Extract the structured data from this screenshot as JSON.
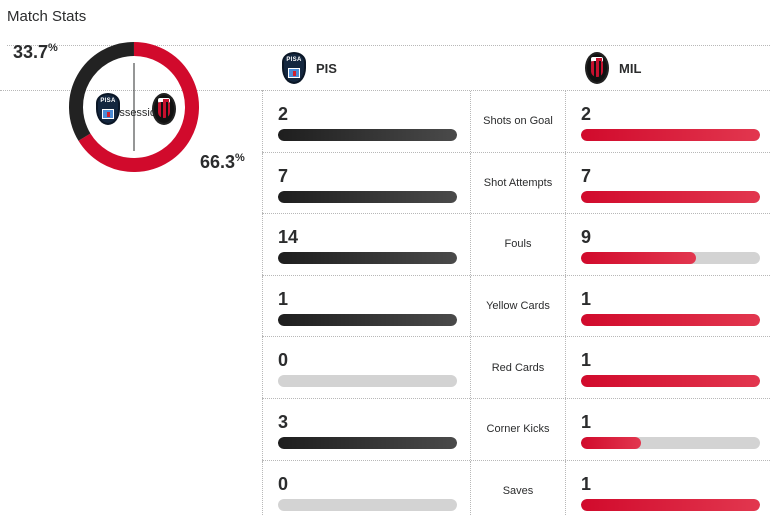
{
  "title": "Match Stats",
  "teams": {
    "home": {
      "abbr": "PIS",
      "logo_text": "PISA",
      "color": "#2b2c2d"
    },
    "away": {
      "abbr": "MIL",
      "color": "#d10a2c"
    }
  },
  "possession": {
    "label": "Possession",
    "home_value": "33.7",
    "away_value": "66.3",
    "unit": "%",
    "home_fraction": 0.337,
    "away_fraction": 0.663
  },
  "stats": [
    {
      "label": "Shots on Goal",
      "home": "2",
      "away": "2",
      "home_fill": 1.0,
      "away_fill": 1.0
    },
    {
      "label": "Shot Attempts",
      "home": "7",
      "away": "7",
      "home_fill": 1.0,
      "away_fill": 1.0
    },
    {
      "label": "Fouls",
      "home": "14",
      "away": "9",
      "home_fill": 1.0,
      "away_fill": 0.643
    },
    {
      "label": "Yellow Cards",
      "home": "1",
      "away": "1",
      "home_fill": 1.0,
      "away_fill": 1.0
    },
    {
      "label": "Red Cards",
      "home": "0",
      "away": "1",
      "home_fill": 0.0,
      "away_fill": 1.0
    },
    {
      "label": "Corner Kicks",
      "home": "3",
      "away": "1",
      "home_fill": 1.0,
      "away_fill": 0.333
    },
    {
      "label": "Saves",
      "home": "0",
      "away": "1",
      "home_fill": 0.0,
      "away_fill": 1.0
    }
  ]
}
